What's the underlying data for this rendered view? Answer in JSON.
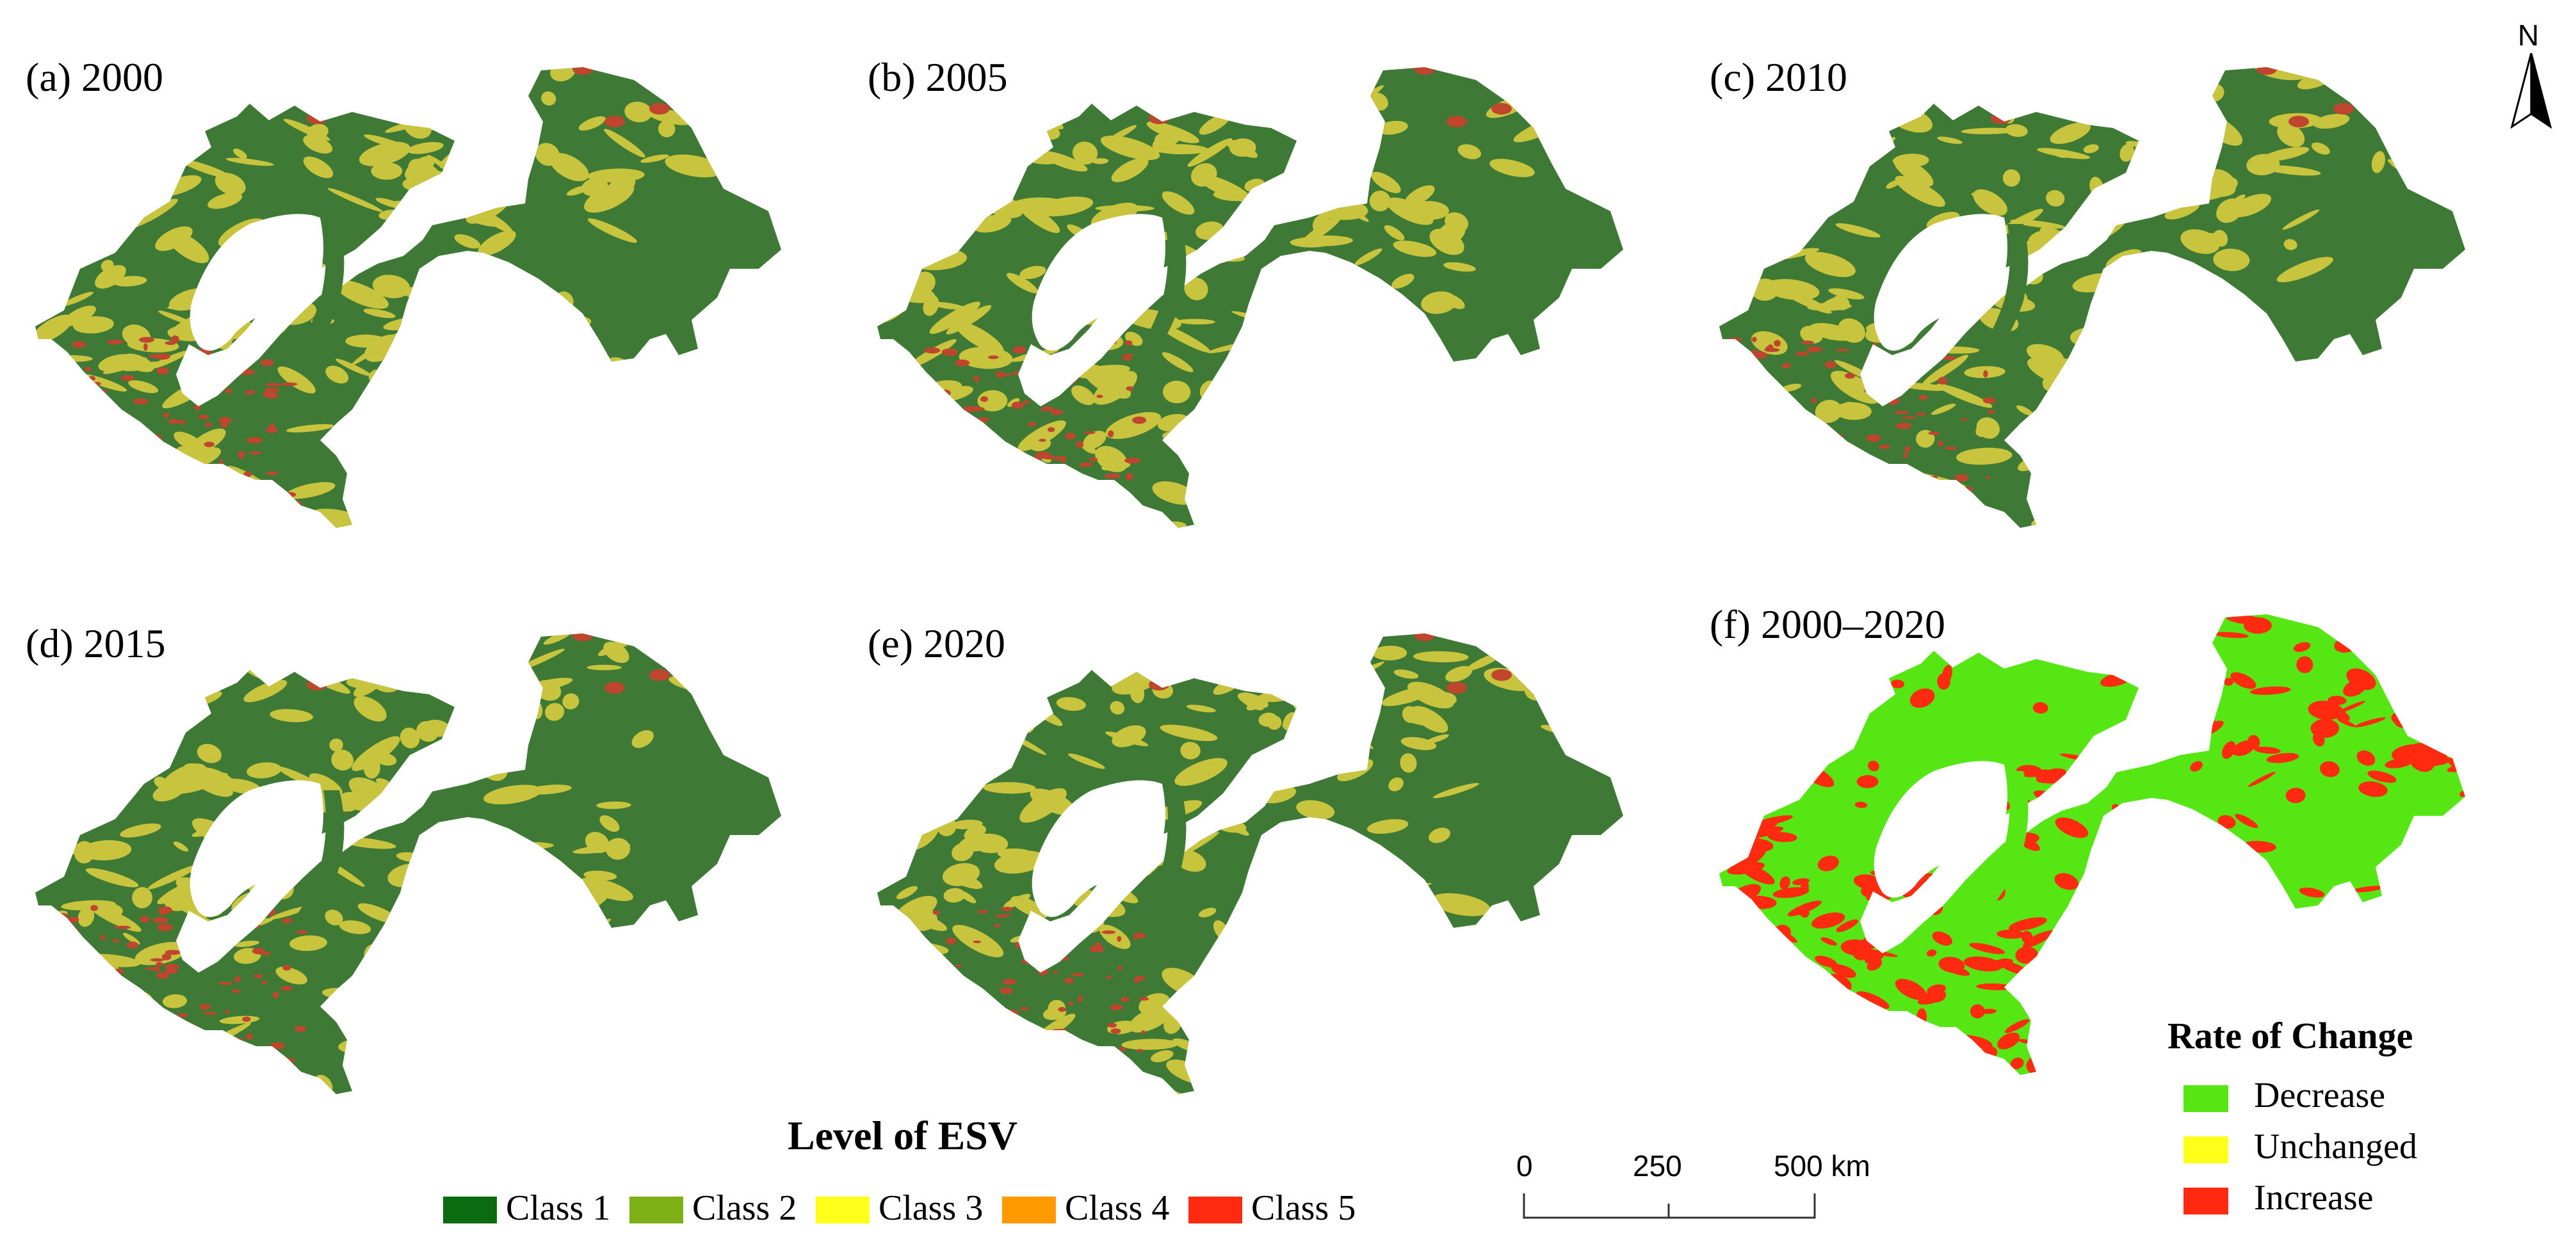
{
  "panels": [
    {
      "id": "a",
      "label": "(a) 2000",
      "variant": "esv"
    },
    {
      "id": "b",
      "label": "(b) 2005",
      "variant": "esv"
    },
    {
      "id": "c",
      "label": "(c) 2010",
      "variant": "esv"
    },
    {
      "id": "d",
      "label": "(d) 2015",
      "variant": "esv"
    },
    {
      "id": "e",
      "label": "(e) 2020",
      "variant": "esv"
    },
    {
      "id": "f",
      "label": "(f) 2000–2020",
      "variant": "change"
    }
  ],
  "north_arrow": {
    "label": "N"
  },
  "esv_legend": {
    "title": "Level of ESV",
    "items": [
      {
        "label": "Class 1",
        "color": "#0a6b10"
      },
      {
        "label": "Class 2",
        "color": "#7cb014"
      },
      {
        "label": "Class 3",
        "color": "#ffff1a"
      },
      {
        "label": "Class 4",
        "color": "#ff9900"
      },
      {
        "label": "Class 5",
        "color": "#ff2a10"
      }
    ]
  },
  "scale_bar": {
    "labels": [
      "0",
      "250",
      "500 km"
    ]
  },
  "change_legend": {
    "title": "Rate of Change",
    "items": [
      {
        "label": "Decrease",
        "color": "#55e614"
      },
      {
        "label": "Unchanged",
        "color": "#ffff1a"
      },
      {
        "label": "Increase",
        "color": "#ff2a10"
      }
    ]
  },
  "map_colors": {
    "esv_base": "#3e7a35",
    "esv_mid": "#c8c43e",
    "esv_high": "#c0452e",
    "change_base": "#55e614",
    "change_increase": "#ff2a10"
  }
}
